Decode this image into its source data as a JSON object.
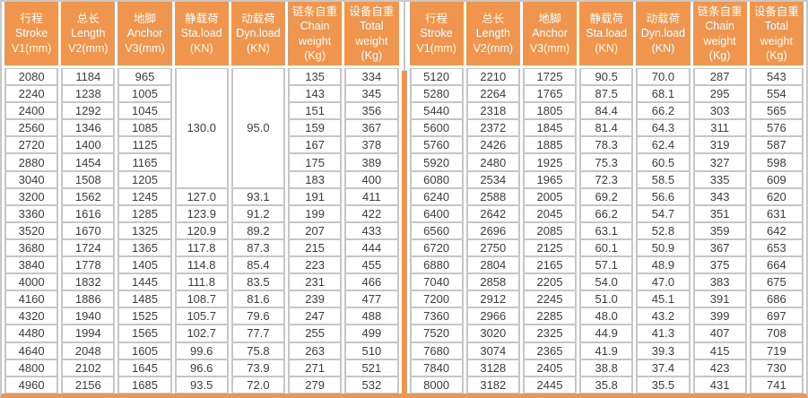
{
  "colors": {
    "header_bg": "#f0954e",
    "divider": "#f0954e",
    "cell_border": "#c6c6c6",
    "outer_border": "#c9c9c9",
    "body_text": "#3d3d3d",
    "header_text": "#ffffff"
  },
  "chart_data": {
    "type": "table",
    "title": "",
    "columns": [
      "行程\nStroke\nV1(mm)",
      "总长\nLength\nV2(mm)",
      "地脚\nAnchor\nV3(mm)",
      "静载荷\nSta.load\n(KN)",
      "动载荷\nDyn.load\n(KN)",
      "链条自重\nChain\nweight\n(Kg)",
      "设备自重\nTotal\nweight\n(Kg)"
    ],
    "panels": {
      "left": {
        "merge": {
          "cols": [
            3,
            4
          ],
          "start_row": 0,
          "row_count": 7
        },
        "rows": [
          [
            "2080",
            "1184",
            "965",
            "130.0",
            "95.0",
            "135",
            "334"
          ],
          [
            "2240",
            "1238",
            "1005",
            "",
            "",
            "143",
            "345"
          ],
          [
            "2400",
            "1292",
            "1045",
            "",
            "",
            "151",
            "356"
          ],
          [
            "2560",
            "1346",
            "1085",
            "",
            "",
            "159",
            "367"
          ],
          [
            "2720",
            "1400",
            "1125",
            "",
            "",
            "167",
            "378"
          ],
          [
            "2880",
            "1454",
            "1165",
            "",
            "",
            "175",
            "389"
          ],
          [
            "3040",
            "1508",
            "1205",
            "",
            "",
            "183",
            "400"
          ],
          [
            "3200",
            "1562",
            "1245",
            "127.0",
            "93.1",
            "191",
            "411"
          ],
          [
            "3360",
            "1616",
            "1285",
            "123.9",
            "91.2",
            "199",
            "422"
          ],
          [
            "3520",
            "1670",
            "1325",
            "120.9",
            "89.2",
            "207",
            "433"
          ],
          [
            "3680",
            "1724",
            "1365",
            "117.8",
            "87.3",
            "215",
            "444"
          ],
          [
            "3840",
            "1778",
            "1405",
            "114.8",
            "85.4",
            "223",
            "455"
          ],
          [
            "4000",
            "1832",
            "1445",
            "111.8",
            "83.5",
            "231",
            "466"
          ],
          [
            "4160",
            "1886",
            "1485",
            "108.7",
            "81.6",
            "239",
            "477"
          ],
          [
            "4320",
            "1940",
            "1525",
            "105.7",
            "79.6",
            "247",
            "488"
          ],
          [
            "4480",
            "1994",
            "1565",
            "102.7",
            "77.7",
            "255",
            "499"
          ],
          [
            "4640",
            "2048",
            "1605",
            "99.6",
            "75.8",
            "263",
            "510"
          ],
          [
            "4800",
            "2102",
            "1645",
            "96.6",
            "73.9",
            "271",
            "521"
          ],
          [
            "4960",
            "2156",
            "1685",
            "93.5",
            "72.0",
            "279",
            "532"
          ]
        ]
      },
      "right": {
        "merge": null,
        "rows": [
          [
            "5120",
            "2210",
            "1725",
            "90.5",
            "70.0",
            "287",
            "543"
          ],
          [
            "5280",
            "2264",
            "1765",
            "87.5",
            "68.1",
            "295",
            "554"
          ],
          [
            "5440",
            "2318",
            "1805",
            "84.4",
            "66.2",
            "303",
            "565"
          ],
          [
            "5600",
            "2372",
            "1845",
            "81.4",
            "64.3",
            "311",
            "576"
          ],
          [
            "5760",
            "2426",
            "1885",
            "78.3",
            "62.4",
            "319",
            "587"
          ],
          [
            "5920",
            "2480",
            "1925",
            "75.3",
            "60.5",
            "327",
            "598"
          ],
          [
            "6080",
            "2534",
            "1965",
            "72.3",
            "58.5",
            "335",
            "609"
          ],
          [
            "6240",
            "2588",
            "2005",
            "69.2",
            "56.6",
            "343",
            "620"
          ],
          [
            "6400",
            "2642",
            "2045",
            "66.2",
            "54.7",
            "351",
            "631"
          ],
          [
            "6560",
            "2696",
            "2085",
            "63.1",
            "52.8",
            "359",
            "642"
          ],
          [
            "6720",
            "2750",
            "2125",
            "60.1",
            "50.9",
            "367",
            "653"
          ],
          [
            "6880",
            "2804",
            "2165",
            "57.1",
            "48.9",
            "375",
            "664"
          ],
          [
            "7040",
            "2858",
            "2205",
            "54.0",
            "47.0",
            "383",
            "675"
          ],
          [
            "7200",
            "2912",
            "2245",
            "51.0",
            "45.1",
            "391",
            "686"
          ],
          [
            "7360",
            "2966",
            "2285",
            "48.0",
            "43.2",
            "399",
            "697"
          ],
          [
            "7520",
            "3020",
            "2325",
            "44.9",
            "41.3",
            "407",
            "708"
          ],
          [
            "7680",
            "3074",
            "2365",
            "41.9",
            "39.3",
            "415",
            "719"
          ],
          [
            "7840",
            "3128",
            "2405",
            "38.8",
            "37.4",
            "423",
            "730"
          ],
          [
            "8000",
            "3182",
            "2445",
            "35.8",
            "35.5",
            "431",
            "741"
          ]
        ]
      }
    }
  }
}
